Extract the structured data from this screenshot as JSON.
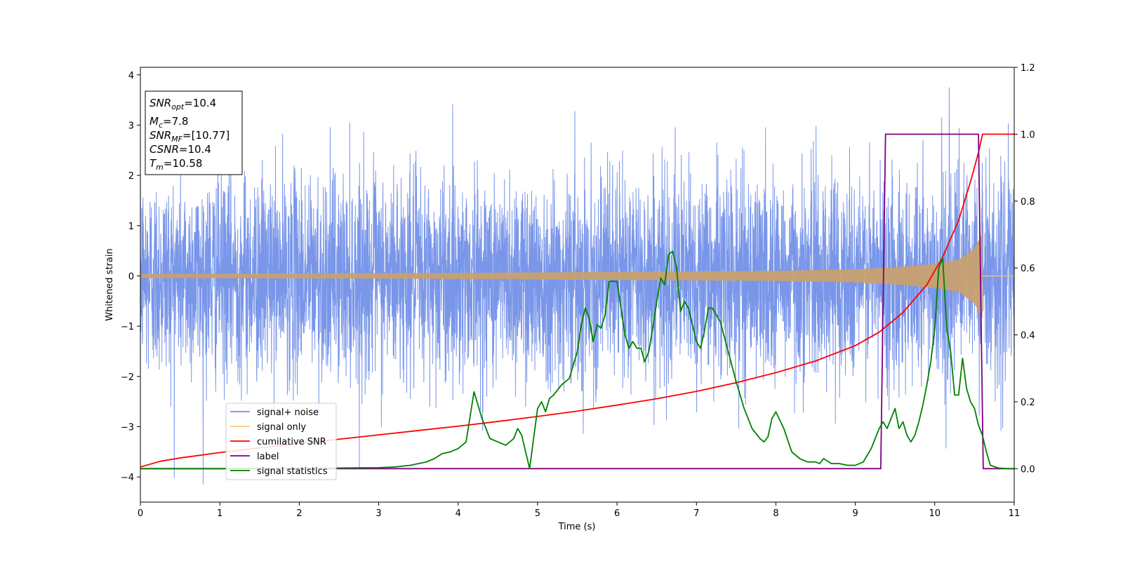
{
  "chart_data": {
    "type": "line",
    "xlabel": "Time (s)",
    "ylabel": "Whitened strain",
    "xlim": [
      0,
      11
    ],
    "ylim_left": [
      -4.5,
      4.15
    ],
    "ylim_right": [
      -0.1,
      1.2
    ],
    "x_ticks": [
      "0",
      "1",
      "2",
      "3",
      "4",
      "5",
      "6",
      "7",
      "8",
      "9",
      "10",
      "11"
    ],
    "y_ticks_left": [
      "4",
      "3",
      "2",
      "1",
      "0",
      "−1",
      "−2",
      "−3",
      "−4"
    ],
    "y_ticks_right": [
      "1.2",
      "1.0",
      "0.8",
      "0.6",
      "0.4",
      "0.2",
      "0.0"
    ],
    "info_box": {
      "snr_opt": {
        "name": "SNR",
        "sub": "opt",
        "value": "=10.4"
      },
      "mc": {
        "name": "M",
        "sub": "c",
        "value": "=7.8"
      },
      "snr_mf": {
        "name": "SNR",
        "sub": "MF",
        "value": "=[10.77]"
      },
      "csnr": {
        "name": "CSNR",
        "sub": "",
        "value": "=10.4"
      },
      "tm": {
        "name": "T",
        "sub": "m",
        "value": "=10.58"
      }
    },
    "legend": {
      "placement": "lower-left",
      "entries": [
        {
          "label": "signal+ noise",
          "color": "#7290e8"
        },
        {
          "label": "signal only",
          "color": "#f8c878"
        },
        {
          "label": "cumilative SNR",
          "color": "#ff0000"
        },
        {
          "label": "label",
          "color": "#800080"
        },
        {
          "label": "signal statistics",
          "color": "#008000"
        }
      ]
    },
    "series": [
      {
        "name": "signal+ noise",
        "axis": "left",
        "color": "#7290e8",
        "description_values": {
          "noise_std": 1.0,
          "max": 3.75,
          "min": -4.15
        }
      },
      {
        "name": "signal only",
        "axis": "left",
        "color": "#c8a070",
        "envelope": {
          "t": [
            0,
            2,
            4,
            6,
            8,
            9,
            9.5,
            10,
            10.3,
            10.5,
            10.6
          ],
          "amp": [
            0.04,
            0.05,
            0.06,
            0.08,
            0.1,
            0.13,
            0.17,
            0.24,
            0.32,
            0.55,
            0.85
          ]
        }
      },
      {
        "name": "cumilative SNR",
        "axis": "right",
        "color": "#ff0000",
        "x": [
          0,
          0.25,
          0.5,
          1,
          1.5,
          2,
          2.5,
          3,
          3.5,
          4,
          4.5,
          5,
          5.5,
          6,
          6.5,
          7,
          7.5,
          8,
          8.5,
          9,
          9.3,
          9.6,
          9.9,
          10.1,
          10.3,
          10.45,
          10.55,
          10.6,
          11
        ],
        "y": [
          0.005,
          0.022,
          0.032,
          0.048,
          0.062,
          0.075,
          0.088,
          0.101,
          0.114,
          0.127,
          0.141,
          0.156,
          0.172,
          0.19,
          0.209,
          0.231,
          0.257,
          0.287,
          0.322,
          0.368,
          0.408,
          0.467,
          0.55,
          0.633,
          0.742,
          0.858,
          0.945,
          1.0,
          1.0
        ]
      },
      {
        "name": "label",
        "axis": "right",
        "color": "#800080",
        "x": [
          0,
          9.32,
          9.38,
          10.55,
          10.61,
          11
        ],
        "y": [
          0,
          0,
          1,
          1,
          0,
          0
        ]
      },
      {
        "name": "signal statistics",
        "axis": "right",
        "color": "#008000",
        "x": [
          0,
          0.5,
          1,
          1.5,
          2,
          2.5,
          3,
          3.2,
          3.4,
          3.6,
          3.7,
          3.8,
          3.9,
          4.0,
          4.1,
          4.2,
          4.3,
          4.4,
          4.5,
          4.6,
          4.7,
          4.75,
          4.8,
          4.9,
          5.0,
          5.05,
          5.1,
          5.15,
          5.2,
          5.3,
          5.4,
          5.5,
          5.55,
          5.6,
          5.65,
          5.7,
          5.75,
          5.8,
          5.85,
          5.9,
          5.95,
          6.0,
          6.05,
          6.1,
          6.15,
          6.2,
          6.25,
          6.3,
          6.35,
          6.4,
          6.45,
          6.5,
          6.55,
          6.6,
          6.65,
          6.7,
          6.75,
          6.8,
          6.85,
          6.9,
          6.95,
          7.0,
          7.05,
          7.1,
          7.15,
          7.2,
          7.3,
          7.4,
          7.5,
          7.6,
          7.7,
          7.8,
          7.85,
          7.9,
          7.95,
          8.0,
          8.1,
          8.2,
          8.3,
          8.4,
          8.5,
          8.55,
          8.6,
          8.7,
          8.8,
          8.9,
          9.0,
          9.1,
          9.2,
          9.3,
          9.35,
          9.4,
          9.45,
          9.5,
          9.55,
          9.6,
          9.65,
          9.7,
          9.75,
          9.8,
          9.85,
          9.9,
          9.95,
          10.0,
          10.05,
          10.1,
          10.15,
          10.2,
          10.25,
          10.3,
          10.35,
          10.4,
          10.45,
          10.5,
          10.55,
          10.6,
          10.65,
          10.7,
          10.8,
          10.9,
          11.0
        ],
        "y": [
          0.0,
          0.0,
          0.0,
          0.001,
          0.001,
          0.002,
          0.003,
          0.005,
          0.01,
          0.02,
          0.03,
          0.045,
          0.05,
          0.06,
          0.08,
          0.23,
          0.15,
          0.09,
          0.08,
          0.07,
          0.09,
          0.12,
          0.1,
          0.0,
          0.18,
          0.2,
          0.17,
          0.21,
          0.22,
          0.25,
          0.27,
          0.35,
          0.43,
          0.48,
          0.45,
          0.38,
          0.43,
          0.42,
          0.46,
          0.56,
          0.56,
          0.56,
          0.48,
          0.4,
          0.36,
          0.38,
          0.36,
          0.36,
          0.32,
          0.35,
          0.42,
          0.5,
          0.57,
          0.55,
          0.64,
          0.65,
          0.6,
          0.47,
          0.5,
          0.48,
          0.43,
          0.38,
          0.36,
          0.41,
          0.48,
          0.48,
          0.44,
          0.35,
          0.26,
          0.18,
          0.12,
          0.09,
          0.08,
          0.095,
          0.15,
          0.17,
          0.12,
          0.05,
          0.03,
          0.02,
          0.02,
          0.015,
          0.03,
          0.015,
          0.015,
          0.01,
          0.01,
          0.02,
          0.06,
          0.12,
          0.14,
          0.12,
          0.15,
          0.18,
          0.12,
          0.14,
          0.1,
          0.08,
          0.1,
          0.14,
          0.19,
          0.25,
          0.32,
          0.42,
          0.6,
          0.63,
          0.42,
          0.35,
          0.22,
          0.22,
          0.33,
          0.24,
          0.2,
          0.18,
          0.13,
          0.1,
          0.05,
          0.01,
          0.002,
          0.0,
          0.0
        ]
      }
    ]
  }
}
